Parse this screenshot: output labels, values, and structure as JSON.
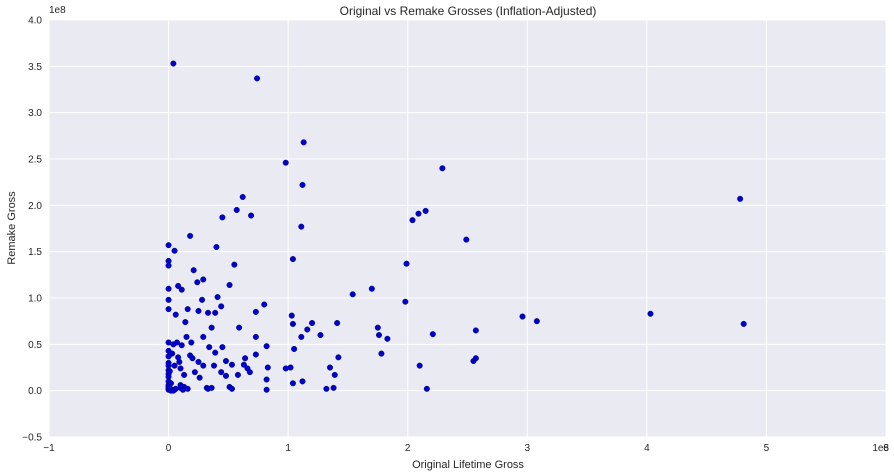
{
  "chart_data": {
    "type": "scatter",
    "title": "Original vs Remake Grosses (Inflation-Adjusted)",
    "xlabel": "Original Lifetime Gross",
    "ylabel": "Remake Gross",
    "x_offset_label": "1e8",
    "y_offset_label": "1e8",
    "xlim": [
      -1,
      6
    ],
    "ylim": [
      -0.5,
      4.0
    ],
    "xticks": [
      -1,
      0,
      1,
      2,
      3,
      4,
      5,
      6
    ],
    "yticks": [
      -0.5,
      0.0,
      0.5,
      1.0,
      1.5,
      2.0,
      2.5,
      3.0,
      3.5,
      4.0
    ],
    "xtick_labels": [
      "−1",
      "0",
      "1",
      "2",
      "3",
      "4",
      "5",
      "6"
    ],
    "ytick_labels": [
      "−0.5",
      "0.0",
      "0.5",
      "1.0",
      "1.5",
      "2.0",
      "2.5",
      "3.0",
      "3.5",
      "4.0"
    ],
    "grid": true,
    "background_color": "#eaeaf2",
    "grid_color": "#ffffff",
    "marker_color": "#0000cc",
    "points": [
      [
        0.04,
        3.53
      ],
      [
        0.74,
        3.37
      ],
      [
        1.13,
        2.68
      ],
      [
        0.98,
        2.46
      ],
      [
        2.29,
        2.4
      ],
      [
        1.12,
        2.22
      ],
      [
        0.62,
        2.09
      ],
      [
        4.78,
        2.07
      ],
      [
        0.57,
        1.95
      ],
      [
        2.15,
        1.94
      ],
      [
        2.09,
        1.91
      ],
      [
        0.69,
        1.89
      ],
      [
        0.45,
        1.87
      ],
      [
        2.04,
        1.84
      ],
      [
        1.11,
        1.77
      ],
      [
        0.18,
        1.67
      ],
      [
        2.49,
        1.63
      ],
      [
        0.0,
        1.57
      ],
      [
        0.4,
        1.55
      ],
      [
        0.05,
        1.51
      ],
      [
        1.04,
        1.42
      ],
      [
        0.0,
        1.4
      ],
      [
        0.0,
        1.35
      ],
      [
        1.99,
        1.37
      ],
      [
        0.55,
        1.36
      ],
      [
        0.21,
        1.3
      ],
      [
        0.29,
        1.2
      ],
      [
        0.24,
        1.17
      ],
      [
        0.51,
        1.14
      ],
      [
        0.08,
        1.13
      ],
      [
        0.11,
        1.09
      ],
      [
        0.0,
        1.1
      ],
      [
        1.7,
        1.1
      ],
      [
        1.54,
        1.04
      ],
      [
        0.41,
        1.01
      ],
      [
        0.0,
        0.98
      ],
      [
        0.28,
        0.98
      ],
      [
        0.16,
        0.88
      ],
      [
        1.98,
        0.96
      ],
      [
        0.8,
        0.93
      ],
      [
        0.44,
        0.91
      ],
      [
        0.25,
        0.86
      ],
      [
        0.0,
        0.88
      ],
      [
        0.73,
        0.85
      ],
      [
        0.33,
        0.84
      ],
      [
        0.39,
        0.84
      ],
      [
        0.06,
        0.82
      ],
      [
        1.03,
        0.81
      ],
      [
        2.96,
        0.8
      ],
      [
        3.08,
        0.75
      ],
      [
        4.03,
        0.83
      ],
      [
        4.81,
        0.72
      ],
      [
        0.14,
        0.74
      ],
      [
        1.04,
        0.72
      ],
      [
        1.2,
        0.73
      ],
      [
        1.41,
        0.73
      ],
      [
        0.36,
        0.68
      ],
      [
        0.59,
        0.68
      ],
      [
        1.75,
        0.68
      ],
      [
        1.16,
        0.66
      ],
      [
        2.57,
        0.65
      ],
      [
        2.21,
        0.61
      ],
      [
        1.27,
        0.6
      ],
      [
        1.76,
        0.6
      ],
      [
        1.11,
        0.58
      ],
      [
        0.15,
        0.58
      ],
      [
        0.29,
        0.58
      ],
      [
        0.73,
        0.58
      ],
      [
        1.83,
        0.56
      ],
      [
        0.0,
        0.52
      ],
      [
        0.04,
        0.5
      ],
      [
        0.07,
        0.52
      ],
      [
        0.11,
        0.49
      ],
      [
        0.19,
        0.52
      ],
      [
        0.34,
        0.47
      ],
      [
        0.45,
        0.47
      ],
      [
        0.82,
        0.48
      ],
      [
        1.05,
        0.45
      ],
      [
        0.0,
        0.43
      ],
      [
        0.03,
        0.4
      ],
      [
        0.18,
        0.38
      ],
      [
        0.39,
        0.41
      ],
      [
        0.73,
        0.39
      ],
      [
        1.78,
        0.4
      ],
      [
        0.0,
        0.37
      ],
      [
        0.08,
        0.36
      ],
      [
        0.2,
        0.35
      ],
      [
        2.57,
        0.35
      ],
      [
        2.55,
        0.32
      ],
      [
        1.42,
        0.36
      ],
      [
        0.09,
        0.31
      ],
      [
        0.25,
        0.31
      ],
      [
        0.48,
        0.32
      ],
      [
        0.64,
        0.35
      ],
      [
        0.53,
        0.28
      ],
      [
        0.0,
        0.3
      ],
      [
        0.0,
        0.27
      ],
      [
        0.05,
        0.27
      ],
      [
        0.1,
        0.24
      ],
      [
        0.29,
        0.27
      ],
      [
        0.38,
        0.27
      ],
      [
        0.63,
        0.28
      ],
      [
        0.66,
        0.24
      ],
      [
        0.83,
        0.25
      ],
      [
        0.98,
        0.24
      ],
      [
        1.02,
        0.25
      ],
      [
        1.35,
        0.25
      ],
      [
        2.1,
        0.27
      ],
      [
        0.0,
        0.22
      ],
      [
        0.0,
        0.18
      ],
      [
        0.01,
        0.21
      ],
      [
        0.22,
        0.2
      ],
      [
        0.44,
        0.2
      ],
      [
        0.58,
        0.17
      ],
      [
        0.68,
        0.2
      ],
      [
        0.48,
        0.16
      ],
      [
        0.0,
        0.15
      ],
      [
        0.13,
        0.17
      ],
      [
        0.26,
        0.14
      ],
      [
        1.39,
        0.17
      ],
      [
        0.82,
        0.12
      ],
      [
        1.12,
        0.1
      ],
      [
        0.0,
        0.1
      ],
      [
        0.0,
        0.06
      ],
      [
        0.02,
        0.08
      ],
      [
        0.1,
        0.06
      ],
      [
        0.13,
        0.04
      ],
      [
        0.32,
        0.03
      ],
      [
        0.51,
        0.04
      ],
      [
        1.04,
        0.08
      ],
      [
        0.0,
        0.04
      ],
      [
        0.0,
        0.02
      ],
      [
        0.03,
        0.01
      ],
      [
        0.05,
        0.01
      ],
      [
        0.16,
        0.02
      ],
      [
        0.33,
        0.02
      ],
      [
        0.36,
        0.03
      ],
      [
        0.53,
        0.02
      ],
      [
        0.82,
        0.01
      ],
      [
        1.32,
        0.02
      ],
      [
        1.38,
        0.03
      ],
      [
        2.16,
        0.02
      ],
      [
        0.02,
        0.0
      ],
      [
        0.04,
        0.0
      ],
      [
        0.1,
        0.03
      ],
      [
        0.0,
        0.01
      ],
      [
        0.01,
        0.03
      ],
      [
        0.06,
        0.02
      ],
      [
        0.12,
        0.01
      ]
    ]
  }
}
